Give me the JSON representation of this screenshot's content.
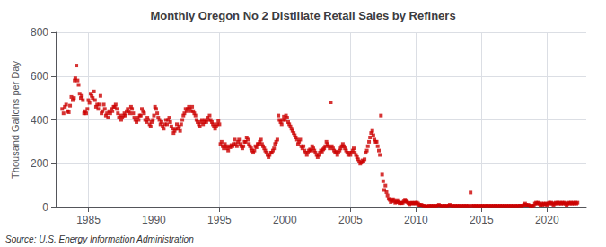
{
  "chart_data": {
    "type": "scatter",
    "title": "Monthly Oregon No 2 Distillate Retail Sales by Refiners",
    "ylabel": "Thousand Gallons per Day",
    "annotations": [
      "Source: U.S. Energy Information Administration"
    ],
    "color": "#cc0000",
    "marker": "square",
    "grid": true,
    "xlim": [
      1982.5,
      2023
    ],
    "ylim": [
      0,
      800
    ],
    "xticks": [
      1985,
      1990,
      1995,
      2000,
      2005,
      2010,
      2015,
      2020
    ],
    "yticks": [
      0,
      200,
      400,
      600,
      800
    ],
    "x": [
      1983.0,
      1983.1,
      1983.2,
      1983.3,
      1983.4,
      1983.5,
      1983.6,
      1983.7,
      1983.8,
      1983.9,
      1983.95,
      1984.0,
      1984.08,
      1984.17,
      1984.25,
      1984.33,
      1984.42,
      1984.5,
      1984.58,
      1984.67,
      1984.75,
      1984.83,
      1984.92,
      1985.0,
      1985.08,
      1985.17,
      1985.25,
      1985.33,
      1985.42,
      1985.5,
      1985.58,
      1985.67,
      1985.75,
      1985.83,
      1985.92,
      1986.0,
      1986.08,
      1986.17,
      1986.25,
      1986.33,
      1986.42,
      1986.5,
      1986.58,
      1986.67,
      1986.75,
      1986.83,
      1986.92,
      1987.0,
      1987.08,
      1987.17,
      1987.25,
      1987.33,
      1987.42,
      1987.5,
      1987.58,
      1987.67,
      1987.75,
      1987.83,
      1987.92,
      1988.0,
      1988.08,
      1988.17,
      1988.25,
      1988.33,
      1988.42,
      1988.5,
      1988.58,
      1988.67,
      1988.75,
      1988.83,
      1988.92,
      1989.0,
      1989.08,
      1989.17,
      1989.25,
      1989.33,
      1989.42,
      1989.5,
      1989.58,
      1989.67,
      1989.75,
      1989.83,
      1989.92,
      1990.0,
      1990.08,
      1990.17,
      1990.25,
      1990.33,
      1990.42,
      1990.5,
      1990.58,
      1990.67,
      1990.75,
      1990.83,
      1990.92,
      1991.0,
      1991.08,
      1991.17,
      1991.25,
      1991.33,
      1991.42,
      1991.5,
      1991.58,
      1991.67,
      1991.75,
      1991.83,
      1991.92,
      1992.0,
      1992.08,
      1992.17,
      1992.25,
      1992.33,
      1992.42,
      1992.5,
      1992.58,
      1992.67,
      1992.75,
      1992.83,
      1992.92,
      1993.0,
      1993.08,
      1993.17,
      1993.25,
      1993.33,
      1993.42,
      1993.5,
      1993.58,
      1993.67,
      1993.75,
      1993.83,
      1993.92,
      1994.0,
      1994.08,
      1994.17,
      1994.25,
      1994.33,
      1994.42,
      1994.5,
      1994.58,
      1994.67,
      1994.75,
      1994.83,
      1994.92,
      1995.0,
      1995.08,
      1995.17,
      1995.25,
      1995.33,
      1995.42,
      1995.5,
      1995.58,
      1995.67,
      1995.75,
      1995.83,
      1995.92,
      1996.0,
      1996.08,
      1996.17,
      1996.25,
      1996.33,
      1996.42,
      1996.5,
      1996.58,
      1996.67,
      1996.75,
      1996.83,
      1996.92,
      1997.0,
      1997.08,
      1997.17,
      1997.25,
      1997.33,
      1997.42,
      1997.5,
      1997.58,
      1997.67,
      1997.75,
      1997.83,
      1997.92,
      1998.0,
      1998.08,
      1998.17,
      1998.25,
      1998.33,
      1998.42,
      1998.5,
      1998.58,
      1998.67,
      1998.75,
      1998.83,
      1998.92,
      1999.0,
      1999.08,
      1999.17,
      1999.25,
      1999.33,
      1999.42,
      1999.5,
      1999.58,
      1999.67,
      1999.75,
      1999.83,
      1999.92,
      2000.0,
      2000.08,
      2000.17,
      2000.25,
      2000.33,
      2000.42,
      2000.5,
      2000.58,
      2000.67,
      2000.75,
      2000.83,
      2000.92,
      2001.0,
      2001.08,
      2001.17,
      2001.25,
      2001.33,
      2001.42,
      2001.5,
      2001.58,
      2001.67,
      2001.75,
      2001.83,
      2001.92,
      2002.0,
      2002.08,
      2002.17,
      2002.25,
      2002.33,
      2002.42,
      2002.5,
      2002.58,
      2002.67,
      2002.75,
      2002.83,
      2002.92,
      2003.0,
      2003.08,
      2003.17,
      2003.25,
      2003.33,
      2003.42,
      2003.5,
      2003.58,
      2003.67,
      2003.75,
      2003.83,
      2003.92,
      2004.0,
      2004.08,
      2004.17,
      2004.25,
      2004.33,
      2004.42,
      2004.5,
      2004.58,
      2004.67,
      2004.75,
      2004.83,
      2004.92,
      2005.0,
      2005.08,
      2005.17,
      2005.25,
      2005.33,
      2005.42,
      2005.5,
      2005.58,
      2005.67,
      2005.75,
      2005.83,
      2005.92,
      2006.0,
      2006.08,
      2006.17,
      2006.25,
      2006.33,
      2006.42,
      2006.5,
      2006.58,
      2006.67,
      2006.75,
      2006.83,
      2006.92,
      2007.0,
      2007.08,
      2007.17,
      2007.25,
      2007.33,
      2007.42,
      2007.5,
      2007.58,
      2007.67,
      2007.75,
      2007.83,
      2007.92,
      2008.0,
      2008.08,
      2008.17,
      2008.25,
      2008.33,
      2008.42,
      2008.5,
      2008.58,
      2008.67,
      2008.75,
      2008.83,
      2008.92,
      2009.0,
      2009.08,
      2009.17,
      2009.25,
      2009.33,
      2009.42,
      2009.5,
      2009.58,
      2009.67,
      2009.75,
      2009.83,
      2009.92,
      2010.0,
      2010.08,
      2010.17,
      2010.25,
      2010.33,
      2010.42,
      2010.5,
      2010.58,
      2010.67,
      2010.75,
      2010.83,
      2010.92,
      2011.0,
      2011.08,
      2011.17,
      2011.25,
      2011.33,
      2011.42,
      2011.5,
      2011.58,
      2011.67,
      2011.75,
      2011.83,
      2011.92,
      2012.0,
      2012.08,
      2012.17,
      2012.25,
      2012.33,
      2012.42,
      2012.5,
      2012.58,
      2012.67,
      2012.75,
      2012.83,
      2012.92,
      2013.0,
      2013.08,
      2013.17,
      2013.25,
      2013.33,
      2013.42,
      2013.5,
      2013.58,
      2013.67,
      2013.75,
      2013.83,
      2013.92,
      2014.0,
      2014.08,
      2014.17,
      2014.25,
      2014.33,
      2014.42,
      2014.5,
      2014.58,
      2014.67,
      2014.75,
      2014.83,
      2014.92,
      2015.0,
      2015.08,
      2015.17,
      2015.25,
      2015.33,
      2015.42,
      2015.5,
      2015.58,
      2015.67,
      2015.75,
      2015.83,
      2015.92,
      2016.0,
      2016.08,
      2016.17,
      2016.25,
      2016.33,
      2016.42,
      2016.5,
      2016.58,
      2016.67,
      2016.75,
      2016.83,
      2016.92,
      2017.0,
      2017.08,
      2017.17,
      2017.25,
      2017.33,
      2017.42,
      2017.5,
      2017.58,
      2017.67,
      2017.75,
      2017.83,
      2017.92,
      2018.0,
      2018.08,
      2018.17,
      2018.25,
      2018.33,
      2018.42,
      2018.5,
      2018.58,
      2018.67,
      2018.75,
      2018.83,
      2018.92,
      2019.0,
      2019.08,
      2019.17,
      2019.25,
      2019.33,
      2019.42,
      2019.5,
      2019.58,
      2019.67,
      2019.75,
      2019.83,
      2019.92,
      2020.0,
      2020.08,
      2020.17,
      2020.25,
      2020.33,
      2020.42,
      2020.5,
      2020.58,
      2020.67,
      2020.75,
      2020.83,
      2020.92,
      2021.0,
      2021.08,
      2021.17,
      2021.25,
      2021.33,
      2021.42,
      2021.5,
      2021.58,
      2021.67,
      2021.75,
      2021.83,
      2021.92,
      2022.0,
      2022.08,
      2022.17,
      2022.25,
      2022.33
    ],
    "values": [
      450,
      430,
      460,
      470,
      440,
      435,
      465,
      505,
      490,
      500,
      580,
      590,
      648,
      580,
      560,
      520,
      500,
      510,
      490,
      430,
      440,
      430,
      450,
      490,
      478,
      520,
      510,
      500,
      530,
      490,
      460,
      470,
      450,
      470,
      510,
      430,
      440,
      470,
      450,
      420,
      430,
      410,
      440,
      430,
      450,
      440,
      460,
      460,
      470,
      450,
      430,
      410,
      420,
      400,
      410,
      420,
      430,
      420,
      440,
      450,
      440,
      430,
      460,
      450,
      430,
      410,
      400,
      390,
      410,
      400,
      420,
      420,
      450,
      440,
      430,
      400,
      390,
      410,
      400,
      380,
      370,
      390,
      400,
      420,
      460,
      450,
      430,
      410,
      400,
      380,
      390,
      370,
      360,
      380,
      400,
      380,
      400,
      410,
      390,
      370,
      360,
      340,
      350,
      360,
      380,
      360,
      370,
      350,
      380,
      400,
      420,
      430,
      450,
      440,
      450,
      460,
      450,
      440,
      460,
      440,
      430,
      420,
      400,
      390,
      380,
      370,
      390,
      400,
      380,
      390,
      400,
      390,
      410,
      400,
      420,
      400,
      390,
      380,
      370,
      360,
      370,
      380,
      395,
      380,
      290,
      300,
      280,
      270,
      290,
      280,
      270,
      260,
      280,
      275,
      285,
      280,
      290,
      310,
      290,
      280,
      300,
      310,
      290,
      280,
      270,
      280,
      300,
      300,
      320,
      310,
      290,
      280,
      270,
      260,
      250,
      260,
      280,
      275,
      290,
      290,
      300,
      310,
      290,
      280,
      270,
      260,
      250,
      240,
      230,
      240,
      250,
      250,
      260,
      270,
      290,
      300,
      310,
      420,
      400,
      390,
      380,
      400,
      415,
      400,
      420,
      410,
      390,
      380,
      370,
      360,
      350,
      340,
      330,
      320,
      310,
      290,
      300,
      310,
      280,
      270,
      280,
      260,
      250,
      240,
      250,
      260,
      265,
      260,
      280,
      270,
      260,
      250,
      240,
      230,
      240,
      250,
      260,
      255,
      265,
      270,
      280,
      300,
      290,
      280,
      270,
      480,
      280,
      270,
      260,
      250,
      255,
      240,
      250,
      260,
      270,
      280,
      290,
      280,
      270,
      260,
      250,
      240,
      250,
      240,
      250,
      260,
      270,
      250,
      240,
      230,
      220,
      210,
      200,
      205,
      215,
      210,
      220,
      250,
      260,
      280,
      300,
      320,
      340,
      350,
      330,
      310,
      300,
      300,
      280,
      260,
      240,
      420,
      150,
      120,
      80,
      100,
      70,
      55,
      40,
      35,
      25,
      30,
      38,
      30,
      22,
      25,
      30,
      25,
      20,
      22,
      20,
      22,
      28,
      32,
      28,
      25,
      20,
      15,
      20,
      22,
      18,
      20,
      22,
      18,
      22,
      18,
      12,
      10,
      12,
      8,
      5,
      8,
      5,
      5,
      5,
      8,
      5,
      8,
      5,
      8,
      5,
      8,
      5,
      8,
      12,
      8,
      5,
      8,
      5,
      8,
      5,
      8,
      5,
      8,
      12,
      8,
      5,
      8,
      5,
      8,
      5,
      8,
      5,
      8,
      5,
      8,
      5,
      8,
      5,
      8,
      5,
      8,
      5,
      68,
      8,
      5,
      8,
      5,
      8,
      5,
      8,
      5,
      8,
      5,
      8,
      5,
      8,
      5,
      8,
      5,
      8,
      5,
      8,
      5,
      8,
      5,
      8,
      5,
      8,
      5,
      8,
      5,
      8,
      5,
      8,
      5,
      8,
      5,
      8,
      5,
      8,
      5,
      8,
      5,
      8,
      5,
      8,
      5,
      8,
      8,
      5,
      8,
      12,
      18,
      12,
      8,
      12,
      8,
      5,
      8,
      5,
      8,
      18,
      22,
      18,
      22,
      18,
      12,
      18,
      12,
      18,
      15,
      18,
      12,
      18,
      22,
      18,
      22,
      18,
      12,
      18,
      22,
      18,
      22,
      18,
      22,
      18,
      22,
      18,
      22,
      18,
      12,
      18,
      22,
      18,
      22,
      18,
      22,
      18,
      22,
      18,
      22
    ]
  }
}
